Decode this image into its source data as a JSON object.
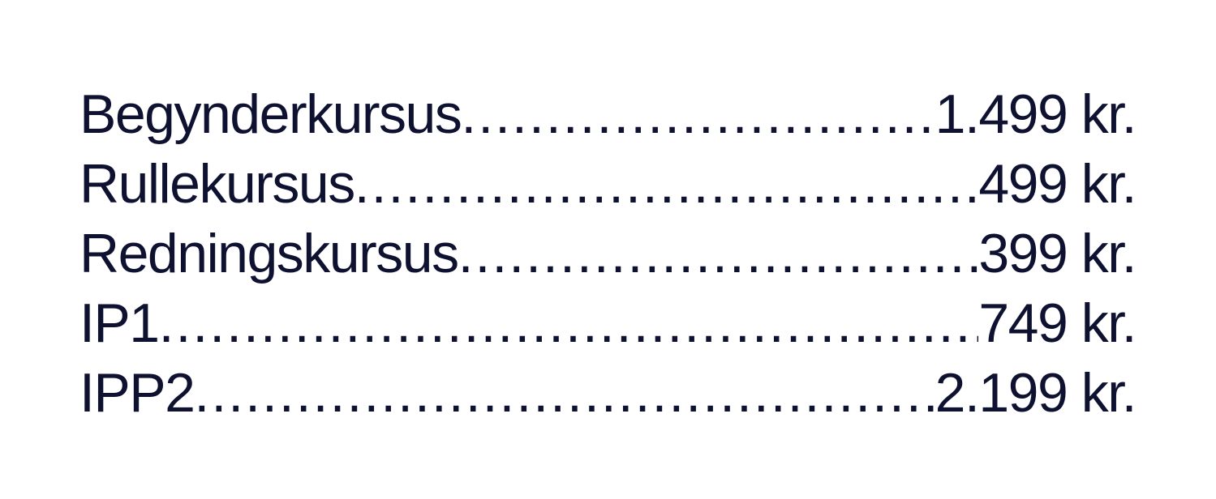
{
  "price_list": {
    "items": [
      {
        "name": "Begynderkursus",
        "price": "1.499 kr."
      },
      {
        "name": "Rullekursus",
        "price": "499 kr."
      },
      {
        "name": "Redningskursus",
        "price": "399 kr."
      },
      {
        "name": "IP1",
        "price": "749 kr."
      },
      {
        "name": "IPP2",
        "price": "2.199 kr."
      }
    ]
  },
  "colors": {
    "text": "#0e1230",
    "background": "#ffffff"
  }
}
